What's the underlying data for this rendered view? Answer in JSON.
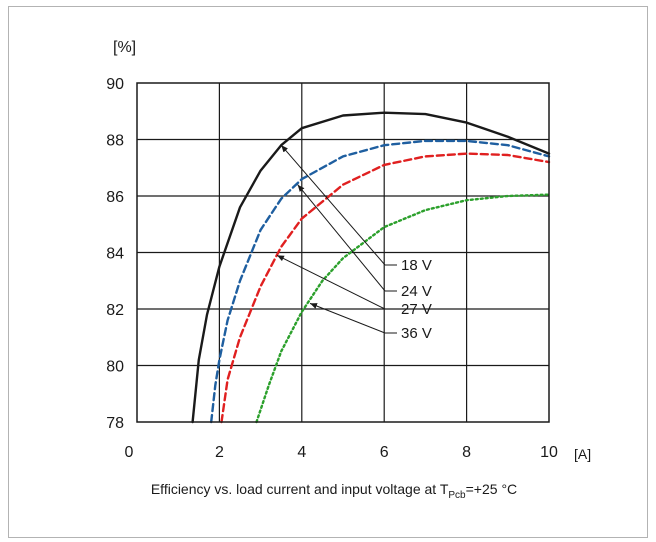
{
  "chart_data": {
    "type": "line",
    "title": "",
    "caption": {
      "prefix": "Efficiency vs. load current and input voltage at T",
      "subscript": "Pcb",
      "suffix": "=+25 °C"
    },
    "xlabel": "[A]",
    "ylabel": "[%]",
    "xlim": [
      0,
      10
    ],
    "ylim": [
      78,
      90
    ],
    "xticks": [
      0,
      2,
      4,
      6,
      8,
      10
    ],
    "yticks": [
      78,
      80,
      82,
      84,
      86,
      88,
      90
    ],
    "grid": true,
    "legend": "labels with leader arrows, right of center",
    "series": [
      {
        "name": "18 V",
        "color": "#1a1a1a",
        "style": "solid",
        "x": [
          1.35,
          1.5,
          1.7,
          2.0,
          2.5,
          3.0,
          3.5,
          4.0,
          5.0,
          6.0,
          7.0,
          8.0,
          9.0,
          10.0
        ],
        "y": [
          78.0,
          80.2,
          81.8,
          83.5,
          85.6,
          86.9,
          87.8,
          88.4,
          88.85,
          88.95,
          88.9,
          88.6,
          88.1,
          87.5
        ]
      },
      {
        "name": "24 V",
        "color": "#1f5fa0",
        "style": "dashed",
        "x": [
          1.8,
          1.9,
          2.0,
          2.2,
          2.5,
          3.0,
          3.5,
          4.0,
          5.0,
          6.0,
          7.0,
          8.0,
          9.0,
          10.0
        ],
        "y": [
          78.0,
          79.3,
          80.2,
          81.6,
          83.0,
          84.8,
          85.9,
          86.6,
          87.4,
          87.8,
          87.95,
          87.95,
          87.8,
          87.4
        ]
      },
      {
        "name": "27 V",
        "color": "#e02020",
        "style": "dashed",
        "x": [
          2.05,
          2.2,
          2.5,
          3.0,
          3.5,
          4.0,
          5.0,
          6.0,
          7.0,
          8.0,
          9.0,
          10.0
        ],
        "y": [
          78.0,
          79.5,
          81.0,
          82.8,
          84.2,
          85.2,
          86.4,
          87.1,
          87.4,
          87.5,
          87.45,
          87.2
        ]
      },
      {
        "name": "36 V",
        "color": "#2ca02c",
        "style": "dotted",
        "x": [
          2.9,
          3.2,
          3.5,
          4.0,
          4.5,
          5.0,
          6.0,
          7.0,
          8.0,
          9.0,
          10.0
        ],
        "y": [
          78.0,
          79.3,
          80.5,
          81.9,
          83.0,
          83.8,
          84.9,
          85.5,
          85.85,
          86.0,
          86.05
        ]
      }
    ],
    "annotations": [
      {
        "label": "18 V",
        "points_to": [
          3.5,
          87.8
        ]
      },
      {
        "label": "24 V",
        "points_to": [
          3.9,
          86.4
        ]
      },
      {
        "label": "27 V",
        "points_to": [
          3.4,
          83.9
        ]
      },
      {
        "label": "36 V",
        "points_to": [
          4.2,
          82.2
        ]
      }
    ]
  }
}
